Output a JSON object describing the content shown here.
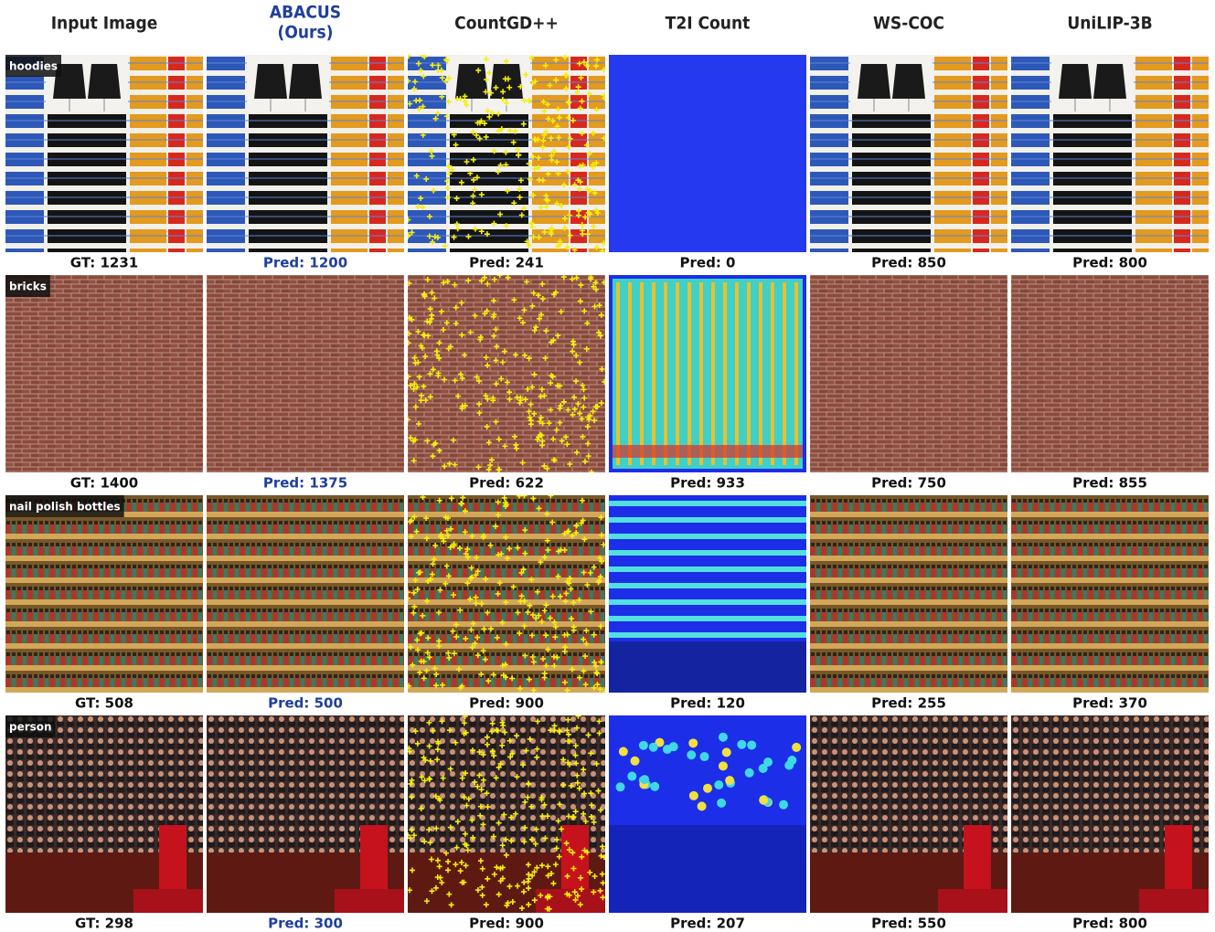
{
  "columns": [
    {
      "title": "Input Image"
    },
    {
      "title": "ABACUS",
      "subtitle": "(Ours)"
    },
    {
      "title": "CountGD++"
    },
    {
      "title": "T2I Count"
    },
    {
      "title": "WS-COC"
    },
    {
      "title": "UniLIP-3B"
    }
  ],
  "rows": [
    {
      "label": "hoodies",
      "captions": [
        "GT: 1231",
        "Pred: 1200",
        "Pred: 241",
        "Pred: 0",
        "Pred: 850",
        "Pred: 800"
      ]
    },
    {
      "label": "bricks",
      "captions": [
        "GT: 1400",
        "Pred: 1375",
        "Pred: 622",
        "Pred: 933",
        "Pred: 750",
        "Pred: 855"
      ]
    },
    {
      "label": "nail polish bottles",
      "captions": [
        "GT: 508",
        "Pred: 500",
        "Pred: 900",
        "Pred: 120",
        "Pred: 255",
        "Pred: 370"
      ]
    },
    {
      "label": "person",
      "captions": [
        "GT: 298",
        "Pred: 300",
        "Pred: 900",
        "Pred: 207",
        "Pred: 550",
        "Pred: 800"
      ]
    }
  ]
}
